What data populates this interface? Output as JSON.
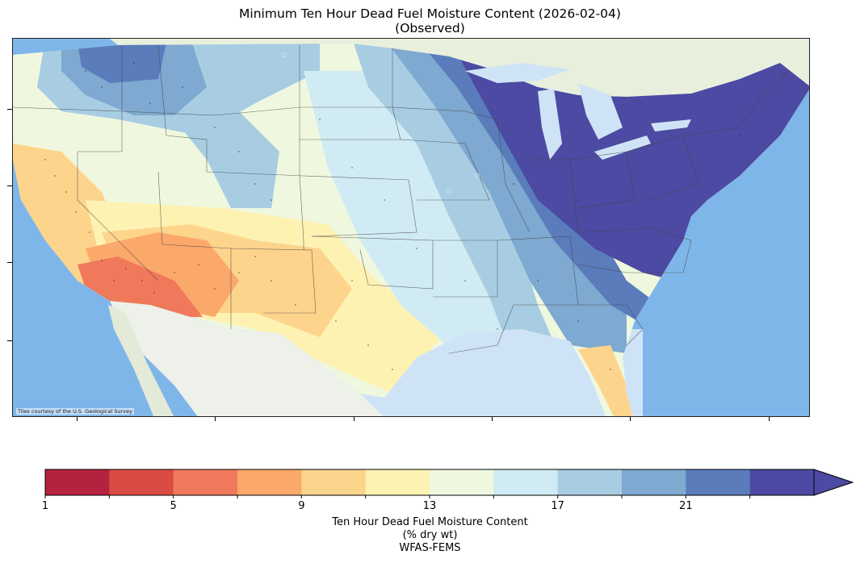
{
  "title": {
    "line1": "Minimum Ten Hour Dead Fuel Moisture Content (2026-02-04)",
    "line2": "(Observed)"
  },
  "map": {
    "credit": "Tiles courtesy of the U.S. Geological Survey",
    "ocean_color": "#7fb6ea",
    "land_color": "#eef0e4"
  },
  "colorbar": {
    "bins": [
      1,
      3,
      5,
      7,
      9,
      11,
      13,
      15,
      17,
      19,
      21,
      23
    ],
    "colors": [
      "#b5223f",
      "#da4b44",
      "#f0795b",
      "#fba86b",
      "#fdd48c",
      "#fdf2b2",
      "#eff8df",
      "#d0ebf3",
      "#a8cde2",
      "#7ea9d0",
      "#5a7cbb",
      "#4c4aa2"
    ],
    "extend_color": "#4c4aa2",
    "tick_labels": [
      "1",
      "5",
      "9",
      "13",
      "17",
      "21"
    ],
    "label_line1": "Ten Hour Dead Fuel Moisture Content",
    "label_line2": "(% dry wt)",
    "label_line3": "WFAS-FEMS"
  }
}
